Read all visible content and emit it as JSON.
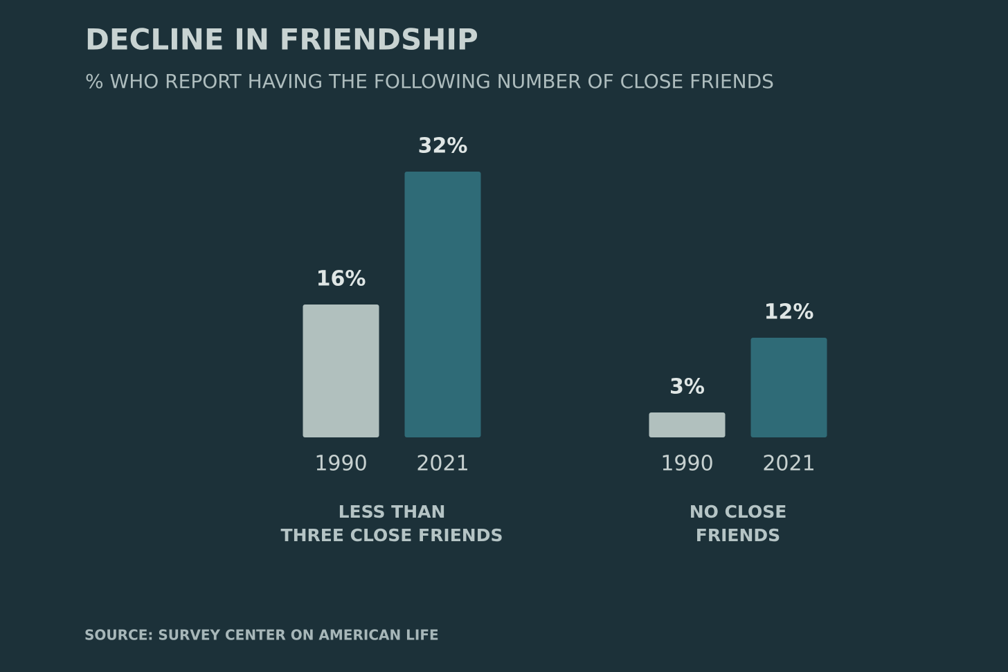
{
  "chart_data": {
    "type": "bar",
    "title": "DECLINE IN FRIENDSHIP",
    "subtitle": "% WHO REPORT HAVING THE FOLLOWING NUMBER OF CLOSE FRIENDS",
    "source": "SOURCE: SURVEY CENTER ON AMERICAN LIFE",
    "categories": [
      [
        "LESS THAN",
        "THREE CLOSE FRIENDS"
      ],
      [
        "NO CLOSE",
        "FRIENDS"
      ]
    ],
    "series": [
      {
        "name": "1990",
        "color": "#b1c0be",
        "values": [
          16,
          3
        ],
        "value_labels": [
          "16%",
          "3%"
        ]
      },
      {
        "name": "2021",
        "color": "#2f6b77",
        "values": [
          32,
          12
        ],
        "value_labels": [
          "32%",
          "12%"
        ]
      }
    ]
  }
}
